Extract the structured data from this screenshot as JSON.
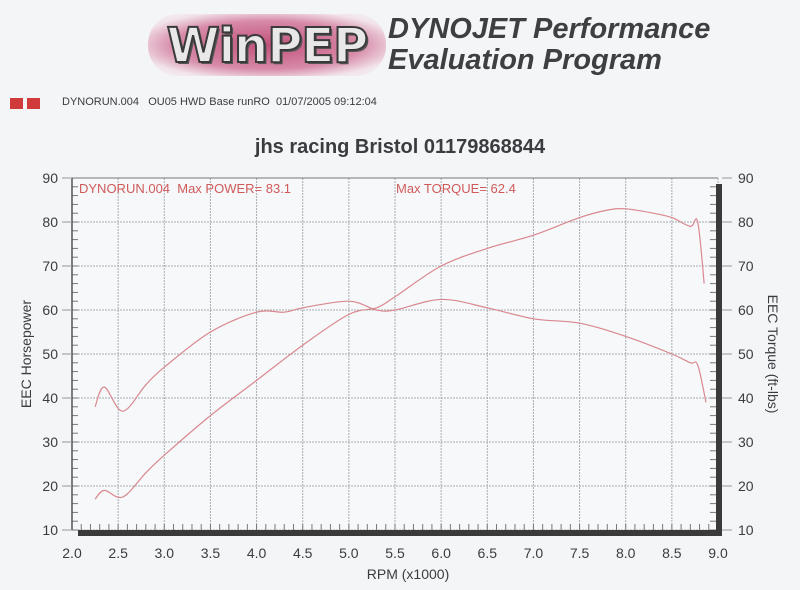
{
  "header": {
    "logo_text": "WinPEP",
    "headline_line1": "DYNOJET Performance",
    "headline_line2": "Evaluation Program",
    "run_info": "DYNORUN.004   OU05 HWD Base runRO  01/07/2005 09:12:04",
    "legend_color": "#d03a3a"
  },
  "annotations": {
    "power": "DYNORUN.004  Max POWER= 83.1",
    "torque": "Max TORQUE= 62.4"
  },
  "colors": {
    "curve": "#d9888f",
    "axis": "#3a3a3a",
    "grid": "#a9adb2",
    "annotation": "#d05a5a"
  },
  "chart_data": {
    "type": "line",
    "title": "jhs racing Bristol  01179868844",
    "xlabel": "RPM (x1000)",
    "ylabel": "EEC Horsepower",
    "ylabel_right": "EEC Torque (ft-lbs)",
    "xlim": [
      2.0,
      9.0
    ],
    "ylim": [
      10,
      90
    ],
    "ylim_right": [
      10,
      90
    ],
    "xticks": [
      "2.0",
      "2.5",
      "3.0",
      "3.5",
      "4.0",
      "4.5",
      "5.0",
      "5.5",
      "6.0",
      "6.5",
      "7.0",
      "7.5",
      "8.0",
      "8.5",
      "9.0"
    ],
    "yticks": [
      "10",
      "20",
      "30",
      "40",
      "50",
      "60",
      "70",
      "80",
      "90"
    ],
    "grid": true,
    "series": [
      {
        "name": "EEC Horsepower",
        "axis": "left",
        "max_label": "Max POWER= 83.1",
        "x": [
          2.25,
          2.35,
          2.55,
          2.8,
          3.0,
          3.5,
          4.0,
          4.5,
          5.0,
          5.3,
          5.5,
          6.0,
          6.5,
          7.0,
          7.5,
          7.8,
          8.0,
          8.3,
          8.5,
          8.7,
          8.78,
          8.85
        ],
        "values": [
          17,
          19,
          17.5,
          23,
          27,
          36,
          44,
          52,
          59,
          60.5,
          63,
          70,
          74,
          77,
          81,
          82.7,
          83,
          82,
          81,
          79,
          80,
          66
        ]
      },
      {
        "name": "EEC Torque",
        "axis": "right",
        "max_label": "Max TORQUE= 62.4",
        "x": [
          2.25,
          2.35,
          2.55,
          2.8,
          3.0,
          3.5,
          4.0,
          4.3,
          4.5,
          5.0,
          5.3,
          5.5,
          6.0,
          6.5,
          7.0,
          7.5,
          8.0,
          8.5,
          8.7,
          8.78,
          8.87
        ],
        "values": [
          38,
          42.5,
          37,
          43,
          47,
          55,
          59.5,
          59.5,
          60.5,
          62,
          60,
          60,
          62.4,
          60.5,
          58,
          57,
          54,
          50,
          48,
          47.5,
          39
        ]
      }
    ]
  }
}
